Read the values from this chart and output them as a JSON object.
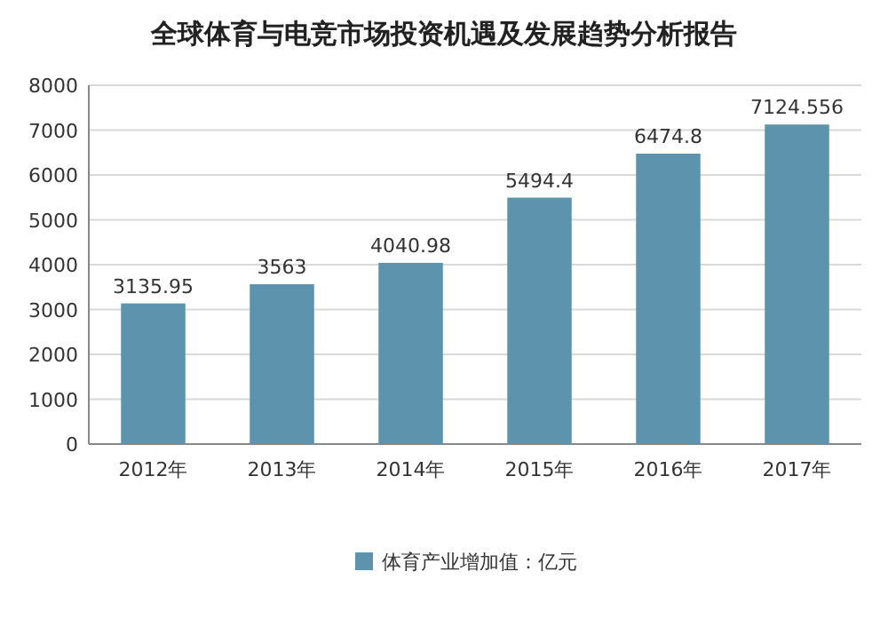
{
  "chart_data": {
    "type": "bar",
    "title": "全球体育与电竞市场投资机遇及发展趋势分析报告",
    "categories": [
      "2012年",
      "2013年",
      "2014年",
      "2015年",
      "2016年",
      "2017年"
    ],
    "series": [
      {
        "name": "体育产业增加值：亿元",
        "color": "#5d93ad",
        "values": [
          3135.95,
          3563,
          4040.98,
          5494.4,
          6474.8,
          7124.556
        ]
      }
    ],
    "ylim": [
      0,
      8000
    ],
    "yticks": [
      0,
      1000,
      2000,
      3000,
      4000,
      5000,
      6000,
      7000,
      8000
    ],
    "grid": "y",
    "legend": "bottom",
    "data_labels": true
  }
}
